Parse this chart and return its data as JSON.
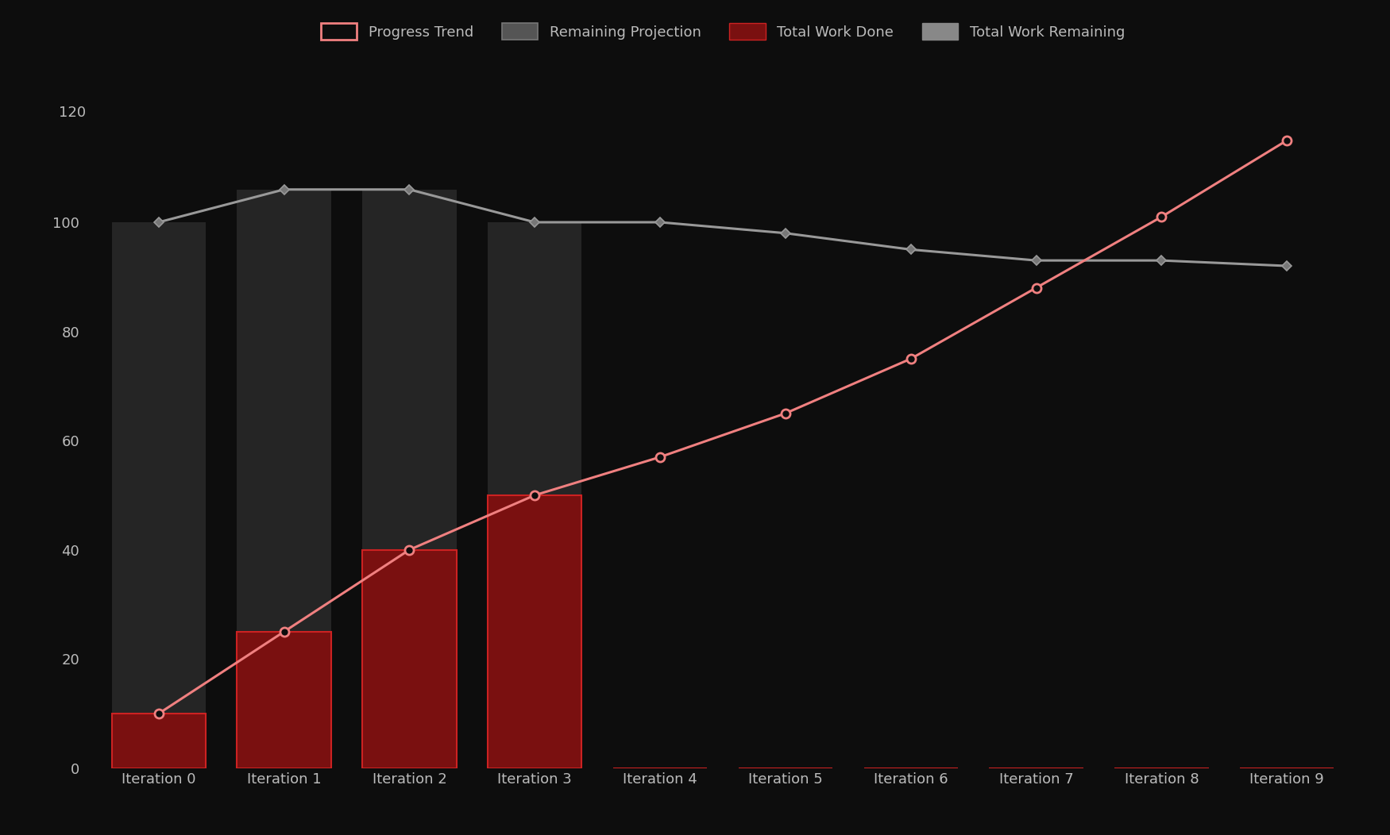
{
  "iterations": [
    "Iteration 0",
    "Iteration 1",
    "Iteration 2",
    "Iteration 3",
    "Iteration 4",
    "Iteration 5",
    "Iteration 6",
    "Iteration 7",
    "Iteration 8",
    "Iteration 9"
  ],
  "progress_trend": [
    10,
    25,
    40,
    50,
    57,
    65,
    75,
    88,
    101,
    115
  ],
  "work_remaining_line": [
    100,
    106,
    106,
    100,
    100,
    98,
    95,
    93,
    93,
    92
  ],
  "work_done_bars": [
    10,
    25,
    40,
    50,
    0,
    0,
    0,
    0,
    0,
    0
  ],
  "remaining_projection_bars": [
    100,
    106,
    106,
    100,
    0,
    0,
    0,
    0,
    0,
    0
  ],
  "background_color": "#0d0d0d",
  "progress_trend_color": "#f08080",
  "progress_trend_marker_facecolor": "#0d0d0d",
  "work_remaining_line_color": "#999999",
  "work_remaining_marker_facecolor": "#777777",
  "work_done_bar_color": "#7a1010",
  "work_done_bar_edge_color": "#cc2222",
  "remaining_projection_bar_color": "#252525",
  "remaining_projection_bar_edge_color": "#252525",
  "ylim": [
    0,
    130
  ],
  "yticks": [
    0,
    20,
    40,
    60,
    80,
    100,
    120
  ],
  "legend_labels": [
    "Progress Trend",
    "Remaining Projection",
    "Total Work Done",
    "Total Work Remaining"
  ],
  "text_color": "#bbbbbb",
  "figsize": [
    17.5,
    10.52
  ],
  "dpi": 100,
  "bar_width": 0.75
}
